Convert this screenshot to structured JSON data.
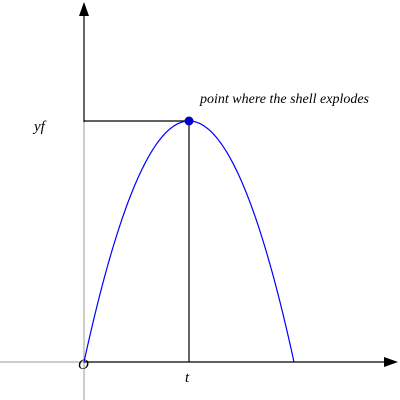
{
  "annotation": "point where the shell explodes",
  "labels": {
    "y_tick": "yf",
    "x_tick": "t",
    "origin": "O"
  },
  "colors": {
    "curve": "#0000ff",
    "point": "#0000cc",
    "axes": "#000000",
    "faint_axes": "#999999"
  }
}
